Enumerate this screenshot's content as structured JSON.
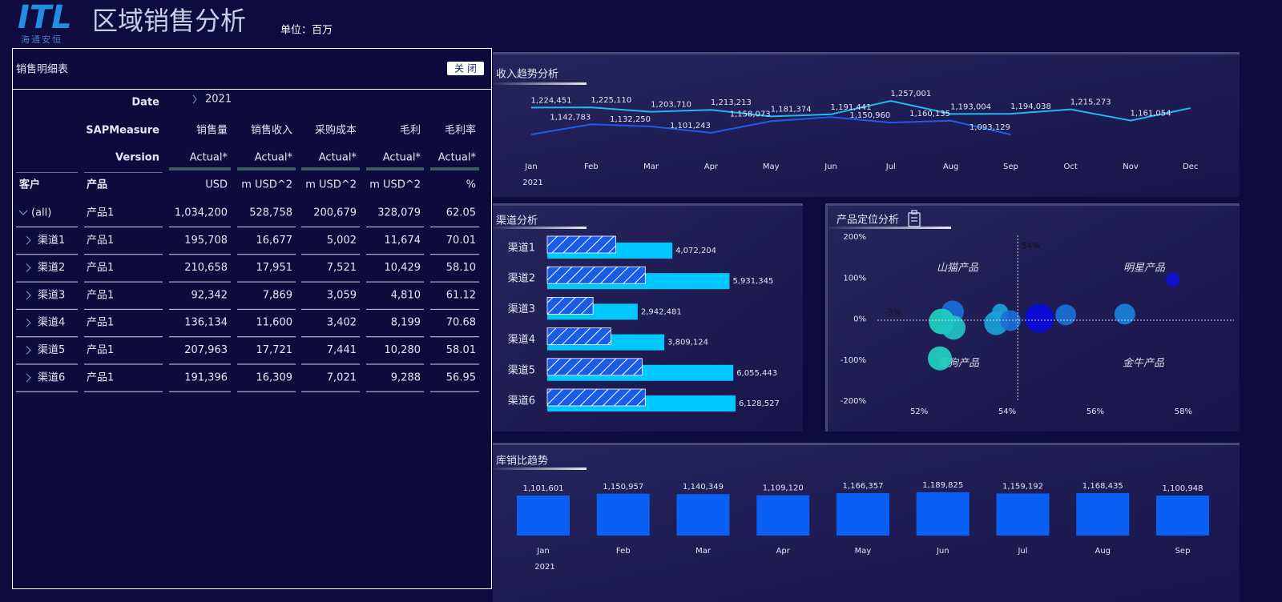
{
  "header": {
    "logo": "ITL",
    "logo_subtitle": "海通安恒",
    "title": "区域销售分析",
    "unit": "单位：百万"
  },
  "table_panel": {
    "title": "销售明细表",
    "close_button": "关 闭",
    "date_label": "Date",
    "date_value": "2021",
    "measure_label": "SAPMeasure",
    "measures": [
      "销售量",
      "销售收入",
      "采购成本",
      "毛利",
      "毛利率"
    ],
    "version_label": "Version",
    "versions": [
      "Actual*",
      "Actual*",
      "Actual*",
      "Actual*",
      "Actual*"
    ],
    "columns": [
      "客户",
      "产品",
      "USD",
      "m USD^2",
      "m USD^2",
      "m USD^2",
      "%"
    ],
    "rows": [
      [
        "(all)",
        "产品1",
        "1,034,200",
        "528,758",
        "200,679",
        "328,079",
        "62.05"
      ],
      [
        "渠道1",
        "产品1",
        "195,708",
        "16,677",
        "5,002",
        "11,674",
        "70.01"
      ],
      [
        "渠道2",
        "产品1",
        "210,658",
        "17,951",
        "7,521",
        "10,429",
        "58.10"
      ],
      [
        "渠道3",
        "产品1",
        "92,342",
        "7,869",
        "3,059",
        "4,810",
        "61.12"
      ],
      [
        "渠道4",
        "产品1",
        "136,134",
        "11,600",
        "3,402",
        "8,199",
        "70.68"
      ],
      [
        "渠道5",
        "产品1",
        "207,963",
        "17,721",
        "7,441",
        "10,280",
        "58.01"
      ],
      [
        "渠道6",
        "产品1",
        "191,396",
        "16,309",
        "7,021",
        "9,288",
        "56.95"
      ]
    ]
  },
  "chart_data": [
    {
      "type": "line",
      "title": "收入趋势分析",
      "categories": [
        "Jan",
        "Feb",
        "Mar",
        "Apr",
        "May",
        "Jun",
        "Jul",
        "Aug",
        "Sep",
        "Oct",
        "Nov",
        "Dec"
      ],
      "x_label": "2021",
      "series": [
        {
          "color": "#22b8f0",
          "values": [
            1224451,
            1225110,
            1203710,
            1213213,
            1181374,
            1191441,
            1257001,
            1193004,
            1194038,
            1215273,
            1161054,
            1222000
          ],
          "value_labels": [
            "1,224,451",
            "1,225,110",
            "1,203,710",
            "1,213,213",
            "1,181,374",
            "1,191,441",
            "1,257,001",
            "1,193,004",
            "1,194,038",
            "1,215,273",
            "1,161,054",
            null
          ]
        },
        {
          "color": "#1a5fe6",
          "values": [
            1093000,
            1142783,
            1132250,
            1101243,
            1158073,
            1178000,
            1150960,
            1160135,
            1093129,
            null,
            null,
            null
          ],
          "value_labels": [
            null,
            "1,142,783",
            "1,132,250",
            "1,101,243",
            "1,158,073",
            null,
            "1,150,960",
            "1,160,135",
            "1,093,129",
            null,
            null,
            null
          ]
        }
      ]
    },
    {
      "type": "hbar",
      "title": "渠道分析",
      "categories": [
        "渠道1",
        "渠道2",
        "渠道3",
        "渠道4",
        "渠道5",
        "渠道6"
      ],
      "series": [
        {
          "color": "#00c8ff",
          "values": [
            4072204,
            5931345,
            2942481,
            3809124,
            6055443,
            6128527
          ],
          "value_labels": [
            "4,072,204",
            "5,931,345",
            "2,942,481",
            "3,809,124",
            "6,055,443",
            "6,128,527"
          ]
        },
        {
          "color": "#1a5ce8",
          "pattern": "hatch",
          "values": [
            2230000,
            3190000,
            1490000,
            2070000,
            3090000,
            3190000
          ]
        }
      ]
    },
    {
      "type": "scatter",
      "title": "产品定位分析",
      "x": [
        52.76,
        52.51,
        52.78,
        52.47,
        53.84,
        53.75,
        54.07,
        54.73,
        55.33,
        56.67,
        57.76
      ],
      "y": [
        17.5,
        -6,
        -21,
        -96,
        17.5,
        -10,
        -4,
        2,
        10,
        12,
        96
      ],
      "sizes": [
        14,
        16,
        15,
        15,
        10,
        15,
        13,
        18,
        13,
        13,
        9
      ],
      "colors": [
        "#1a6fd6",
        "#1fd1c1",
        "#20c4c4",
        "#1fd1c1",
        "#1aa3d9",
        "#1aa3d9",
        "#1a6fd6",
        "#0a0ae0",
        "#1a6fd6",
        "#1a80d9",
        "#1010d0"
      ],
      "xlim": [
        51.05,
        59.15
      ],
      "ylim": [
        -200,
        200
      ],
      "xticks": [
        {
          "value": 52,
          "label": "52%"
        },
        {
          "value": 54,
          "label": "54%"
        },
        {
          "value": 56,
          "label": "56%"
        },
        {
          "value": 58,
          "label": "58%"
        }
      ],
      "yticks": [
        {
          "value": 200,
          "label": "200%"
        },
        {
          "value": 100,
          "label": "100%"
        },
        {
          "value": 0,
          "label": "0%"
        },
        {
          "value": -100,
          "label": "-100%"
        },
        {
          "value": -200,
          "label": "-200%"
        }
      ],
      "reference_lines": [
        {
          "axis": "x",
          "value": 54.24,
          "label": "54%"
        },
        {
          "axis": "y",
          "value": -3,
          "label": "-3%"
        }
      ],
      "quadrant_labels": [
        "山猫产品",
        "明星产品",
        "瘦狗产品",
        "金牛产品"
      ]
    },
    {
      "type": "bar",
      "title": "库销比趋势",
      "categories": [
        "Jan",
        "Feb",
        "Mar",
        "Apr",
        "May",
        "Jun",
        "Jul",
        "Aug",
        "Sep"
      ],
      "x_label": "2021",
      "color": "#0a5ff5",
      "values": [
        1101601,
        1150957,
        1140349,
        1109120,
        1166357,
        1189825,
        1159192,
        1168435,
        1100948
      ],
      "value_labels": [
        "1,101,601",
        "1,150,957",
        "1,140,349",
        "1,109,120",
        "1,166,357",
        "1,189,825",
        "1,159,192",
        "1,168,435",
        "1,100,948"
      ]
    }
  ]
}
